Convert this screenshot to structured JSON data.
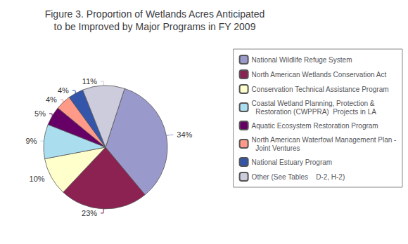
{
  "chart_data": {
    "type": "pie",
    "title": "Figure 3. Proportion of Wetlands Acres Anticipated\nto be Improved by Major Programs in FY 2009",
    "categories": [
      "National Wildlife Refuge System",
      "North American Wetlands Conservation Act",
      "Conservation Technical Assistance Program",
      "Coastal Wetland Planning, Protection &\n  Restoration (CWPPRA)  Projects in LA",
      "Aquatic Ecosystem Restoration Program",
      "North American Waterfowl Management Plan -\n  Joint Ventures",
      "National Estuary Program",
      "Other (See Tables    D-2, H-2)"
    ],
    "values": [
      34,
      23,
      10,
      9,
      5,
      4,
      4,
      11
    ],
    "value_labels": [
      "34%",
      "23%",
      "10%",
      "9%",
      "5%",
      "4%",
      "4%",
      "11%"
    ],
    "data_labels": true,
    "colors": [
      "#9999cc",
      "#8b2252",
      "#ffffcc",
      "#aaddee",
      "#660066",
      "#ff9988",
      "#3355aa",
      "#ccccdd"
    ],
    "legend": "right"
  }
}
